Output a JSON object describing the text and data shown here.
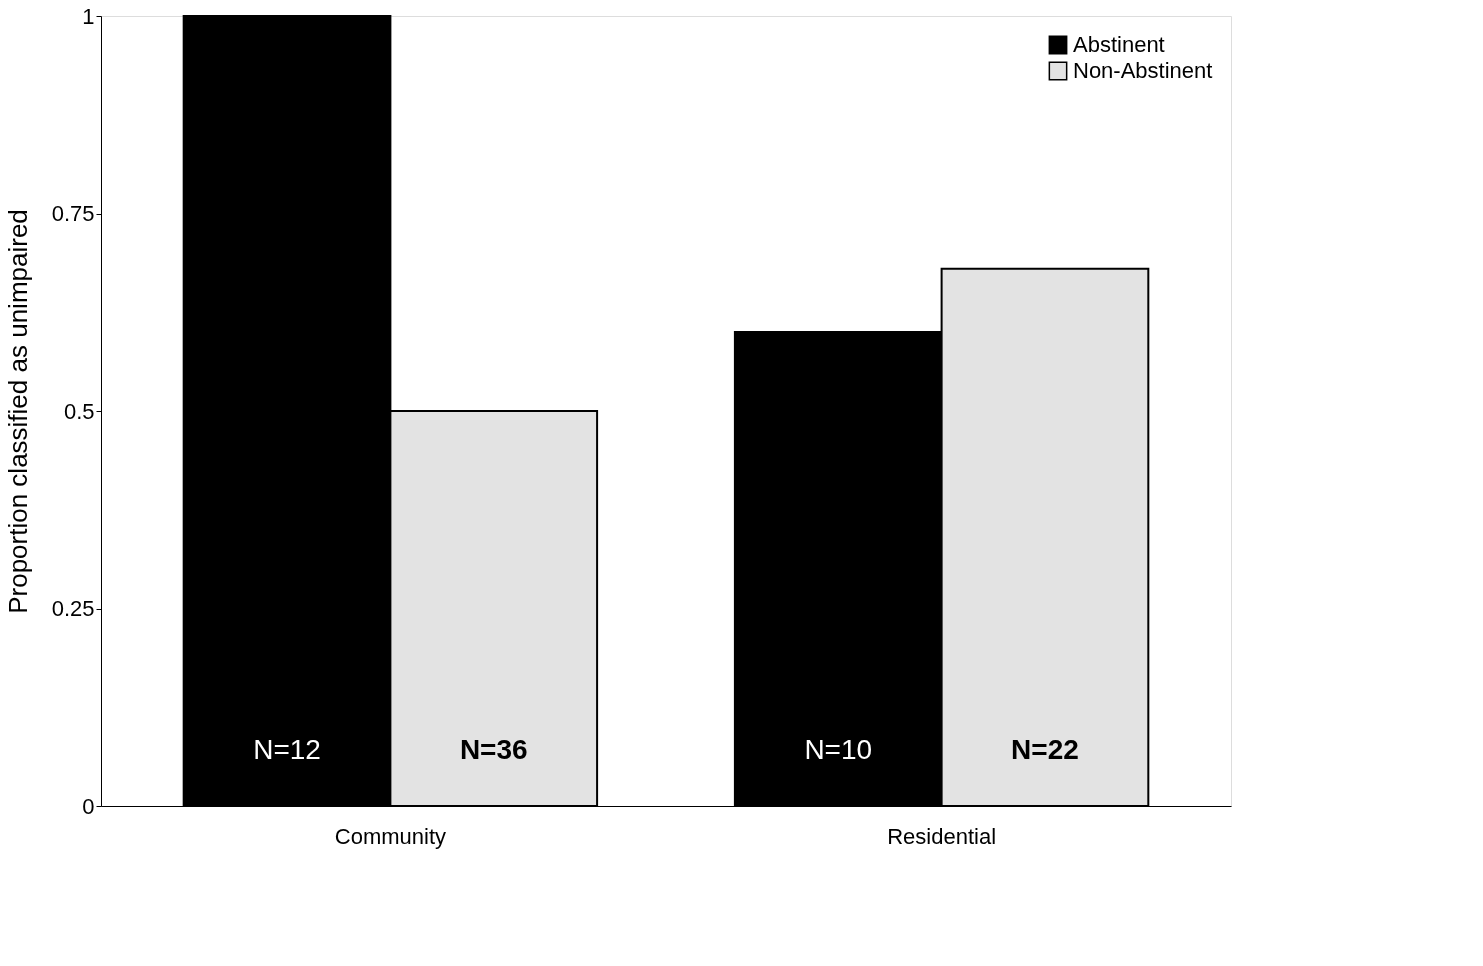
{
  "chart_data": {
    "type": "bar",
    "ylabel": "Proportion classified as unimpaired",
    "categories": [
      "Community",
      "Residential"
    ],
    "series": [
      {
        "name": "Abstinent",
        "color": "#000000",
        "values": [
          1.0,
          0.6
        ]
      },
      {
        "name": "Non-Abstinent",
        "color": "#e3e3e3",
        "values": [
          0.5,
          0.68
        ]
      }
    ],
    "ylim": [
      0,
      1
    ],
    "yticks": [
      0,
      0.25,
      0.5,
      0.75,
      1
    ],
    "grid": false,
    "legend": "top right",
    "annotations": [
      "N=12",
      "N=10",
      "N=36",
      "N=22"
    ]
  }
}
